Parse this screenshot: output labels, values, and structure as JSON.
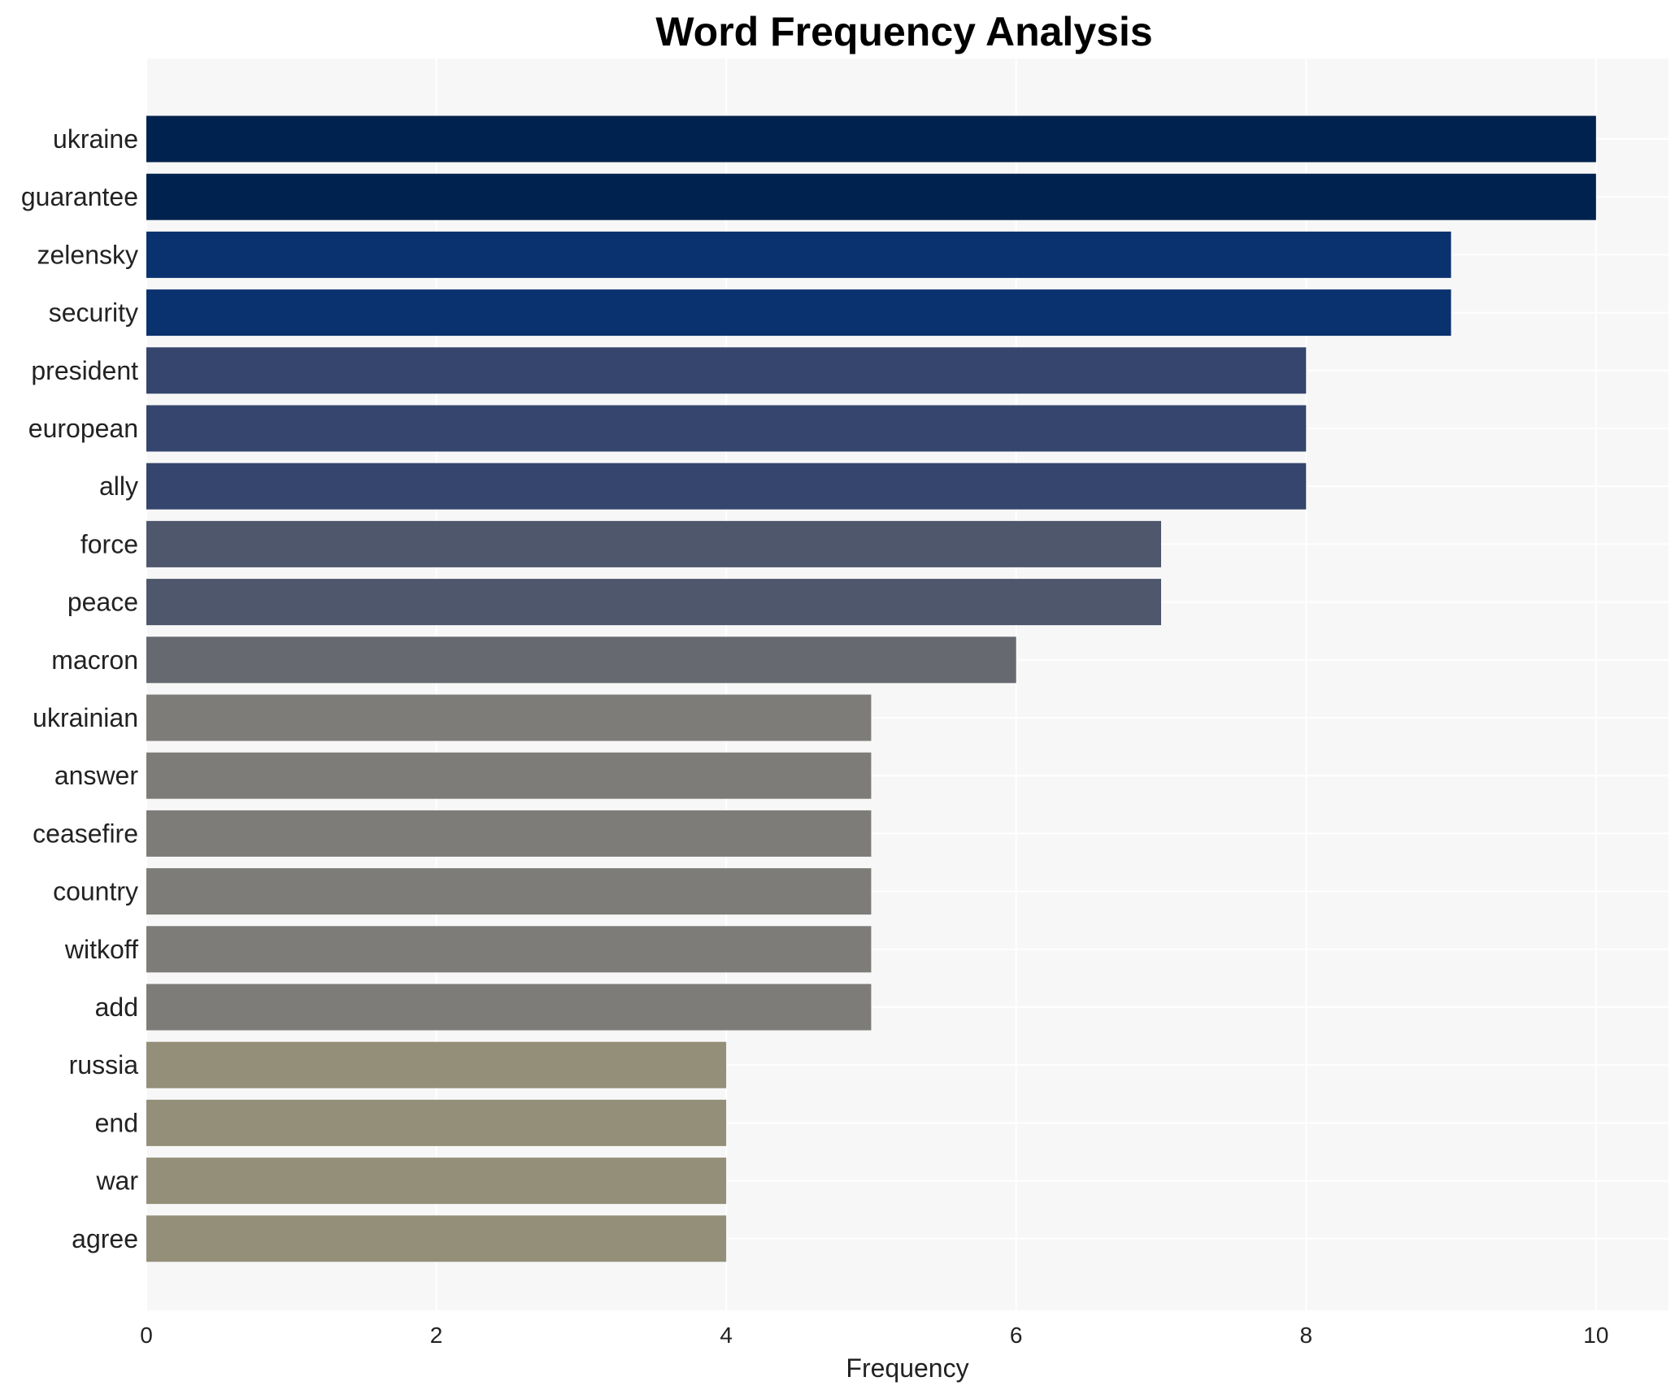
{
  "chart_data": {
    "type": "bar",
    "orientation": "horizontal",
    "title": "Word Frequency Analysis",
    "xlabel": "Frequency",
    "ylabel": "",
    "xlim": [
      0,
      10.5
    ],
    "x_ticks": [
      0,
      2,
      4,
      6,
      8,
      10
    ],
    "grid": true,
    "categories": [
      "ukraine",
      "guarantee",
      "zelensky",
      "security",
      "president",
      "european",
      "ally",
      "force",
      "peace",
      "macron",
      "ukrainian",
      "answer",
      "ceasefire",
      "country",
      "witkoff",
      "add",
      "russia",
      "end",
      "war",
      "agree"
    ],
    "values": [
      10,
      10,
      9,
      9,
      8,
      8,
      8,
      7,
      7,
      6,
      5,
      5,
      5,
      5,
      5,
      5,
      4,
      4,
      4,
      4
    ],
    "colors": {
      "10": "#00224e",
      "9": "#0a326e",
      "8": "#35456d",
      "7": "#4f576c",
      "6": "#666970",
      "5": "#7d7c78",
      "4": "#948f78"
    },
    "plot_background": "#f7f7f7",
    "grid_color": "#ffffff"
  }
}
